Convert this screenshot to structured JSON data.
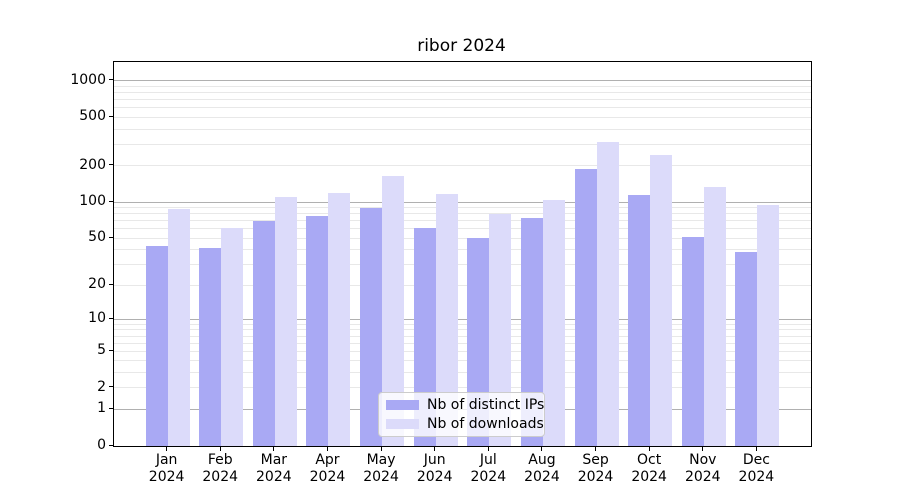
{
  "figure": {
    "title": "ribor 2024",
    "background": "#ffffff"
  },
  "chart_data": {
    "type": "bar",
    "title": "ribor 2024",
    "yscale": "log1p",
    "ylim": [
      0,
      1430
    ],
    "grid": "horizontal log major+minor",
    "legend_position": "lower center",
    "categories": [
      "Jan",
      "Feb",
      "Mar",
      "Apr",
      "May",
      "Jun",
      "Jul",
      "Aug",
      "Sep",
      "Oct",
      "Nov",
      "Dec"
    ],
    "category_year": "2024",
    "ytick_values": [
      0,
      1,
      2,
      5,
      10,
      20,
      50,
      100,
      200,
      500,
      1000
    ],
    "grid_major_values": [
      1,
      10,
      100,
      1000
    ],
    "series": [
      {
        "name": "Nb of distinct IPs",
        "color": "#a9a9f4",
        "values": [
          43,
          41,
          69,
          77,
          90,
          61,
          50,
          74,
          188,
          115,
          51,
          38
        ]
      },
      {
        "name": "Nb of downloads",
        "color": "#dcdbfa",
        "values": [
          87,
          61,
          111,
          118,
          166,
          117,
          79,
          105,
          317,
          244,
          134,
          95
        ]
      }
    ],
    "colors": {
      "grid_major": "#b0b0b0",
      "grid_minor": "#e8e8e8",
      "spine": "#000000",
      "legend_border": "#cccccc",
      "text": "#000000"
    }
  }
}
